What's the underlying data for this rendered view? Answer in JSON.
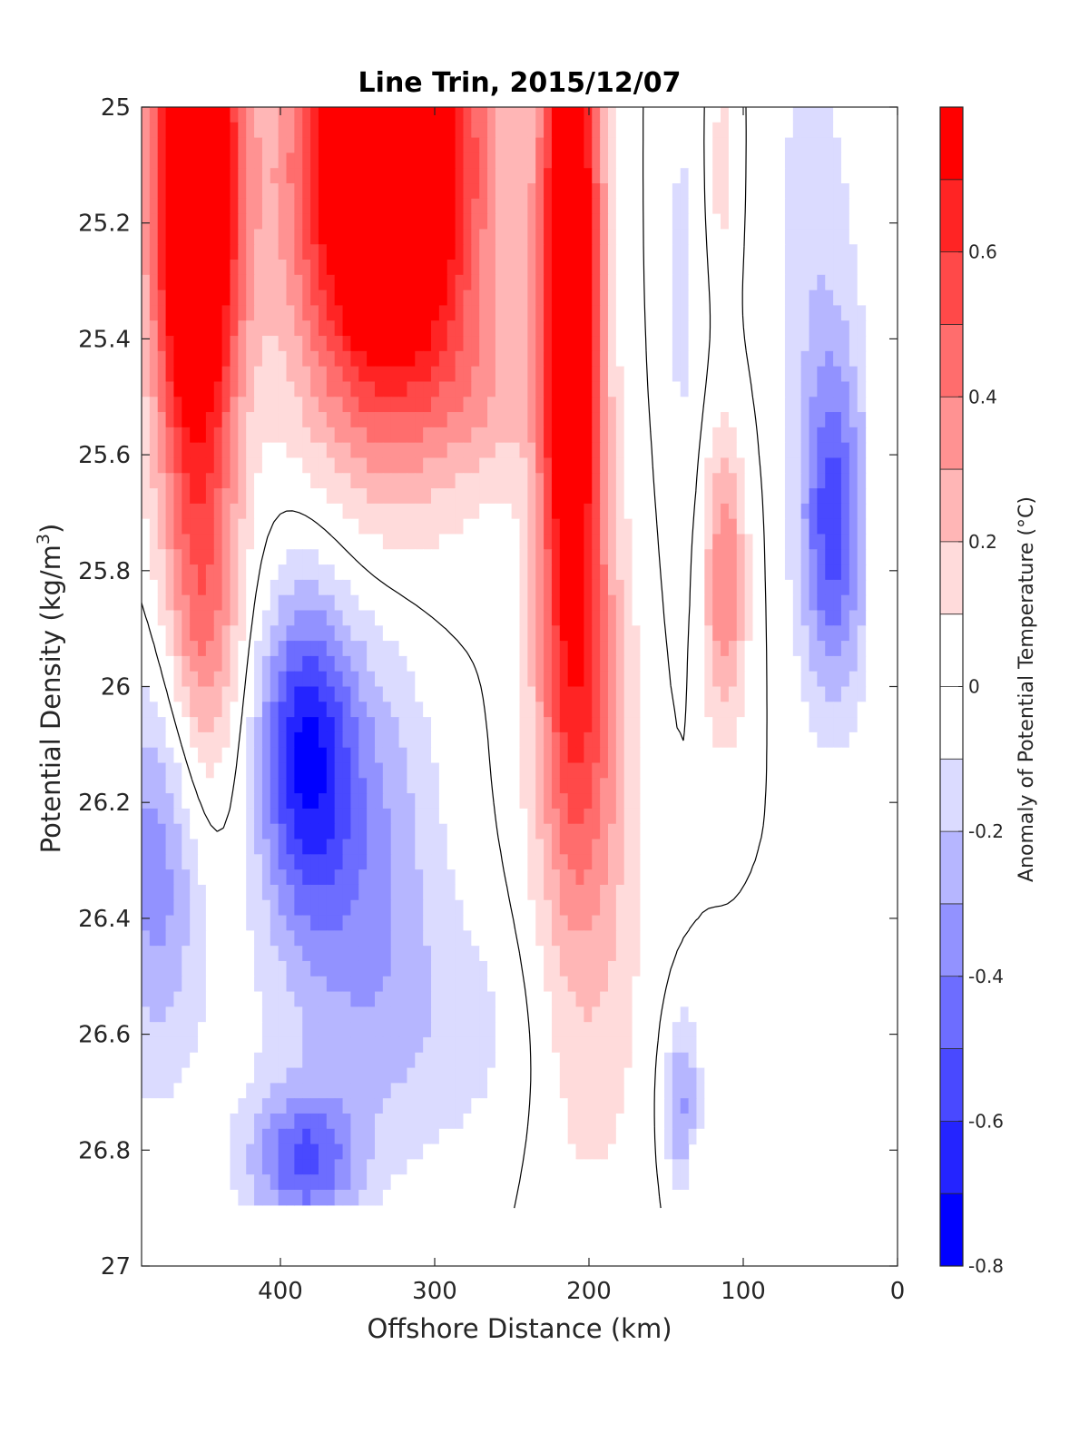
{
  "chart_data": {
    "type": "heatmap",
    "subtype": "filled-contour",
    "title": "Line Trin, 2015/12/07",
    "xlabel": "Offshore Distance (km)",
    "ylabel_text": "Potential Density (kg/m",
    "ylabel_sup": "3",
    "ylabel_close": ")",
    "x_axis": {
      "min": 0,
      "max": 490,
      "reversed": true,
      "ticks": [
        400,
        300,
        200,
        100,
        0
      ],
      "tick_labels": [
        "400",
        "300",
        "200",
        "100",
        "0"
      ]
    },
    "y_axis": {
      "min": 25,
      "max": 27,
      "reversed": true,
      "ticks": [
        25,
        25.2,
        25.4,
        25.6,
        25.8,
        26,
        26.2,
        26.4,
        26.6,
        26.8,
        27
      ],
      "tick_labels": [
        "25",
        "25.2",
        "25.4",
        "25.6",
        "25.8",
        "26",
        "26.2",
        "26.4",
        "26.6",
        "26.8",
        "27"
      ]
    },
    "colorbar": {
      "label": "Anomaly of Potential Temperature (°C)",
      "min": -0.8,
      "max": 0.8,
      "step": 0.1,
      "ticks": [
        0.6,
        0.4,
        0.2,
        0,
        -0.2,
        -0.4,
        -0.6,
        -0.8
      ],
      "tick_labels": [
        "0.6",
        "0.4",
        "0.2",
        "0",
        "-0.2",
        "-0.4",
        "-0.6",
        "-0.8"
      ],
      "colormap": "blue-white-red",
      "positive_color": "#ff0000",
      "negative_color": "#0000ff",
      "neutral_color": "#ffffff"
    },
    "zero_contour_color": "#000000",
    "data_extent": {
      "x": [
        20,
        490
      ],
      "y": [
        25,
        26.9
      ]
    },
    "anomaly_grid": {
      "x": [
        490,
        480,
        465,
        450,
        435,
        420,
        410,
        400,
        390,
        375,
        360,
        345,
        330,
        315,
        300,
        285,
        270,
        255,
        240,
        225,
        210,
        195,
        180,
        165,
        150,
        135,
        120,
        105,
        90,
        75,
        60,
        45,
        30,
        20
      ],
      "y": [
        25.0,
        25.1,
        25.2,
        25.3,
        25.4,
        25.5,
        25.6,
        25.7,
        25.8,
        25.9,
        26.0,
        26.1,
        26.2,
        26.3,
        26.4,
        26.5,
        26.6,
        26.7,
        26.8,
        26.9
      ],
      "values": []
    }
  }
}
